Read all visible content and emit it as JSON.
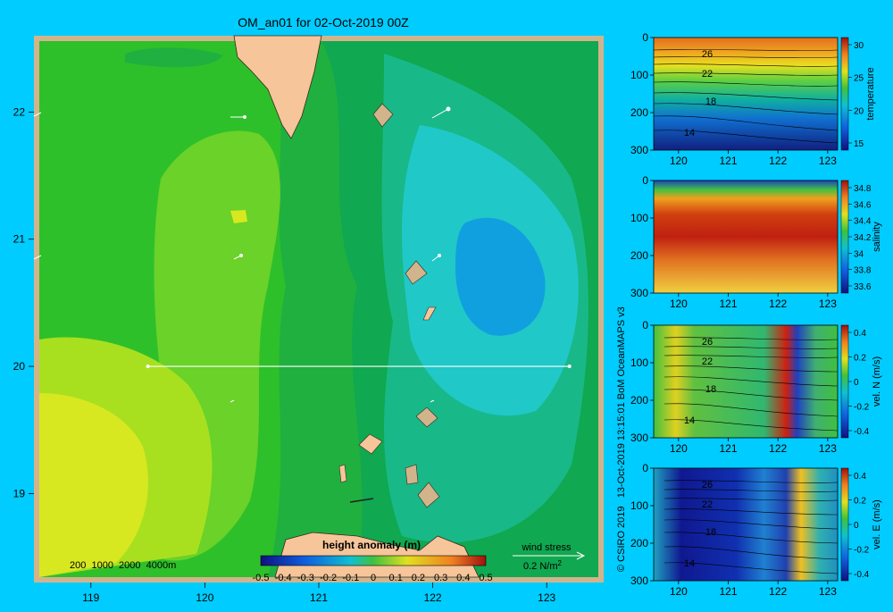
{
  "title": "OM_an01 for 02-Oct-2019 00Z",
  "credit": "© CSIRO 2019   13-Oct-2019 13:15:01 BoM OceanMAPS v3",
  "colors": {
    "background": "#00ccff",
    "land": "#f7c59a",
    "shelf": "#d2b48c"
  },
  "map": {
    "x_ticks": [
      "119",
      "120",
      "121",
      "122",
      "123"
    ],
    "y_ticks": [
      "22",
      "21",
      "20",
      "19"
    ],
    "depth_legend": "200  1000  2000  4000m",
    "colorbar_label": "height anomaly (m)",
    "colorbar_ticks": [
      "-0.5",
      "-0.4",
      "-0.3",
      "-0.2",
      "-0.1",
      "0",
      "0.1",
      "0.2",
      "0.3",
      "0.4",
      "0.5"
    ],
    "wind_title": "wind stress",
    "wind_scale": "0.2 N/m",
    "wind_scale_exp": "2",
    "section_line": {
      "from": {
        "lon": 119.5,
        "lat": 20.0
      },
      "to": {
        "lon": 123.2,
        "lat": 20.0
      }
    }
  },
  "panels": [
    {
      "id": "temperature",
      "colorbar_label": "temperature",
      "colorbar_ticks": [
        "30",
        "25",
        "20",
        "15"
      ],
      "y_ticks": [
        "0",
        "100",
        "200",
        "300"
      ],
      "x_ticks": [
        "120",
        "121",
        "122",
        "123"
      ],
      "contour_labels": [
        "26",
        "22",
        "18",
        "14"
      ]
    },
    {
      "id": "salinity",
      "colorbar_label": "salinity",
      "colorbar_ticks": [
        "34.8",
        "34.6",
        "34.4",
        "34.2",
        "34",
        "33.8",
        "33.6"
      ],
      "y_ticks": [
        "0",
        "100",
        "200",
        "300"
      ],
      "x_ticks": [
        "120",
        "121",
        "122",
        "123"
      ],
      "contour_labels": []
    },
    {
      "id": "vel-n",
      "colorbar_label": "vel. N (m/s)",
      "colorbar_ticks": [
        "0.4",
        "0.2",
        "0",
        "-0.2",
        "-0.4"
      ],
      "y_ticks": [
        "0",
        "100",
        "200",
        "300"
      ],
      "x_ticks": [
        "120",
        "121",
        "122",
        "123"
      ],
      "contour_labels": [
        "26",
        "22",
        "18",
        "14"
      ]
    },
    {
      "id": "vel-e",
      "colorbar_label": "vel. E (m/s)",
      "colorbar_ticks": [
        "0.4",
        "0.2",
        "0",
        "-0.2",
        "-0.4"
      ],
      "y_ticks": [
        "0",
        "100",
        "200",
        "300"
      ],
      "x_ticks": [
        "120",
        "121",
        "122",
        "123"
      ],
      "contour_labels": [
        "26",
        "22",
        "18",
        "14"
      ]
    }
  ]
}
